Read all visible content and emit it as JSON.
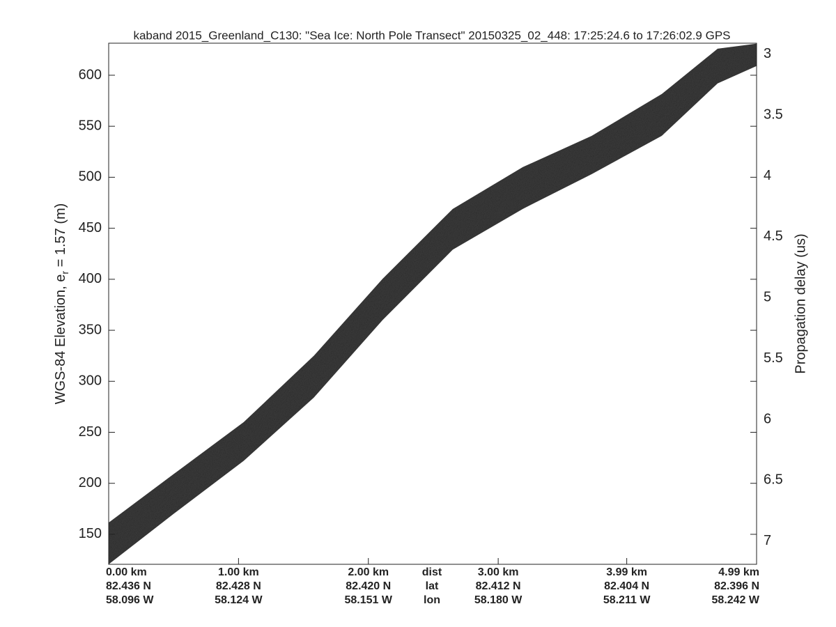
{
  "chart_data": {
    "type": "band",
    "title": "kaband 2015_Greenland_C130: \"Sea Ice: North Pole Transect\"  20150325_02_448: 17:25:24.6 to 17:26:02.9 GPS",
    "y_label": [
      "WGS-84 Elevation, e",
      "r",
      " = 1.57 (m)"
    ],
    "y2_label": "Propagation delay (us)",
    "xlim": [
      0,
      4.99
    ],
    "xticks": [
      {
        "value": 0,
        "label": "0.00 km"
      },
      {
        "value": 1,
        "label": "1.00 km"
      },
      {
        "value": 2,
        "label": "2.00 km"
      },
      {
        "value": 3,
        "label": "3.00 km"
      },
      {
        "value": 3.99,
        "label": "3.99 km"
      },
      {
        "value": 4.99,
        "label": "4.99 km"
      }
    ],
    "lat_labels": [
      "82.436 N",
      "82.428 N",
      "82.420 N",
      "82.412 N",
      "82.404 N",
      "82.396 N"
    ],
    "lon_labels": [
      "58.096 W",
      "58.124 W",
      "58.151 W",
      "58.180 W",
      "58.211 W",
      "58.242 W"
    ],
    "row_labels": [
      "dist",
      "lat",
      "lon"
    ],
    "ylim": [
      120.6,
      631.4
    ],
    "yticks": [
      150,
      200,
      250,
      300,
      350,
      400,
      450,
      500,
      550,
      600
    ],
    "y2lim": [
      7.19,
      2.91
    ],
    "y2ticks": [
      3,
      3.5,
      4,
      4.5,
      5,
      5.5,
      6,
      6.5,
      7
    ],
    "band": {
      "color": "#3d3d3d",
      "x": [
        0,
        0.5,
        1.04,
        1.58,
        2.11,
        2.65,
        3.19,
        3.72,
        4.26,
        4.69,
        4.99
      ],
      "upper": [
        161.5,
        209,
        260,
        325,
        400.5,
        469,
        510,
        540.6,
        581.6,
        626,
        631
      ],
      "lower": [
        120.6,
        170,
        222,
        284,
        360,
        429,
        469,
        503,
        540.6,
        592,
        609
      ]
    }
  }
}
